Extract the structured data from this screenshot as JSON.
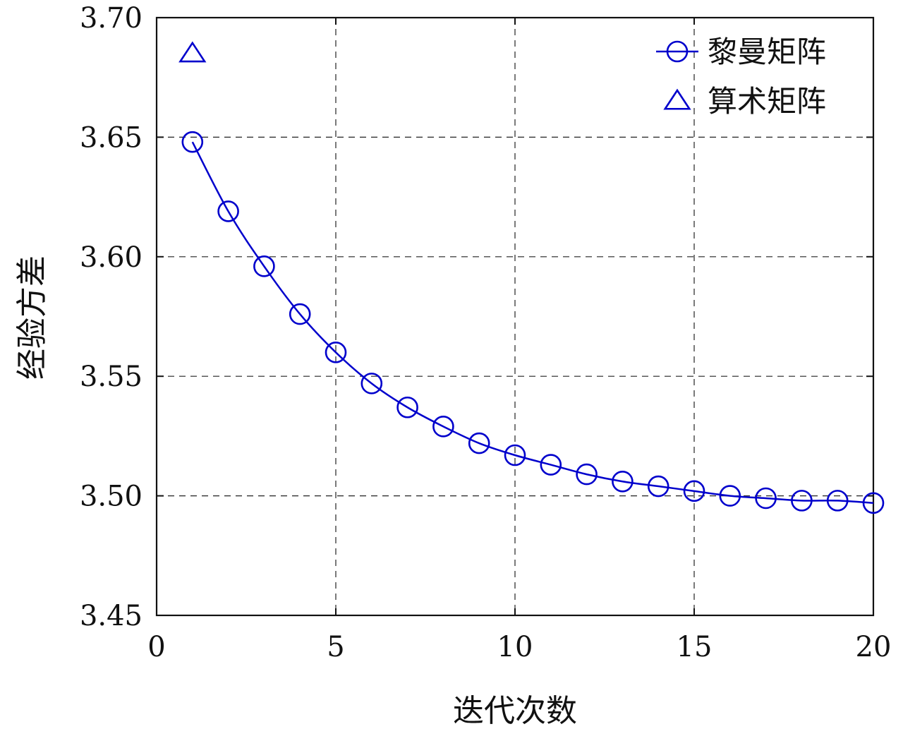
{
  "chart_data": {
    "type": "line",
    "title": "",
    "xlabel": "迭代次数",
    "ylabel": "经验方差",
    "xlim": [
      0,
      20
    ],
    "ylim": [
      3.45,
      3.7
    ],
    "xticks": [
      "0",
      "5",
      "10",
      "15",
      "20"
    ],
    "yticks": [
      "3.45",
      "3.50",
      "3.55",
      "3.60",
      "3.65",
      "3.70"
    ],
    "grid": true,
    "legend_position": "top-right",
    "series": [
      {
        "name": "黎曼矩阵",
        "marker": "circle",
        "color": "#0000cc",
        "x": [
          1,
          2,
          3,
          4,
          5,
          6,
          7,
          8,
          9,
          10,
          11,
          12,
          13,
          14,
          15,
          16,
          17,
          18,
          19,
          20
        ],
        "y": [
          3.648,
          3.619,
          3.596,
          3.576,
          3.56,
          3.547,
          3.537,
          3.529,
          3.522,
          3.517,
          3.513,
          3.509,
          3.506,
          3.504,
          3.502,
          3.5,
          3.499,
          3.498,
          3.498,
          3.497
        ]
      },
      {
        "name": "算术矩阵",
        "marker": "triangle",
        "color": "#0000cc",
        "x": [
          1
        ],
        "y": [
          3.685
        ]
      }
    ]
  }
}
